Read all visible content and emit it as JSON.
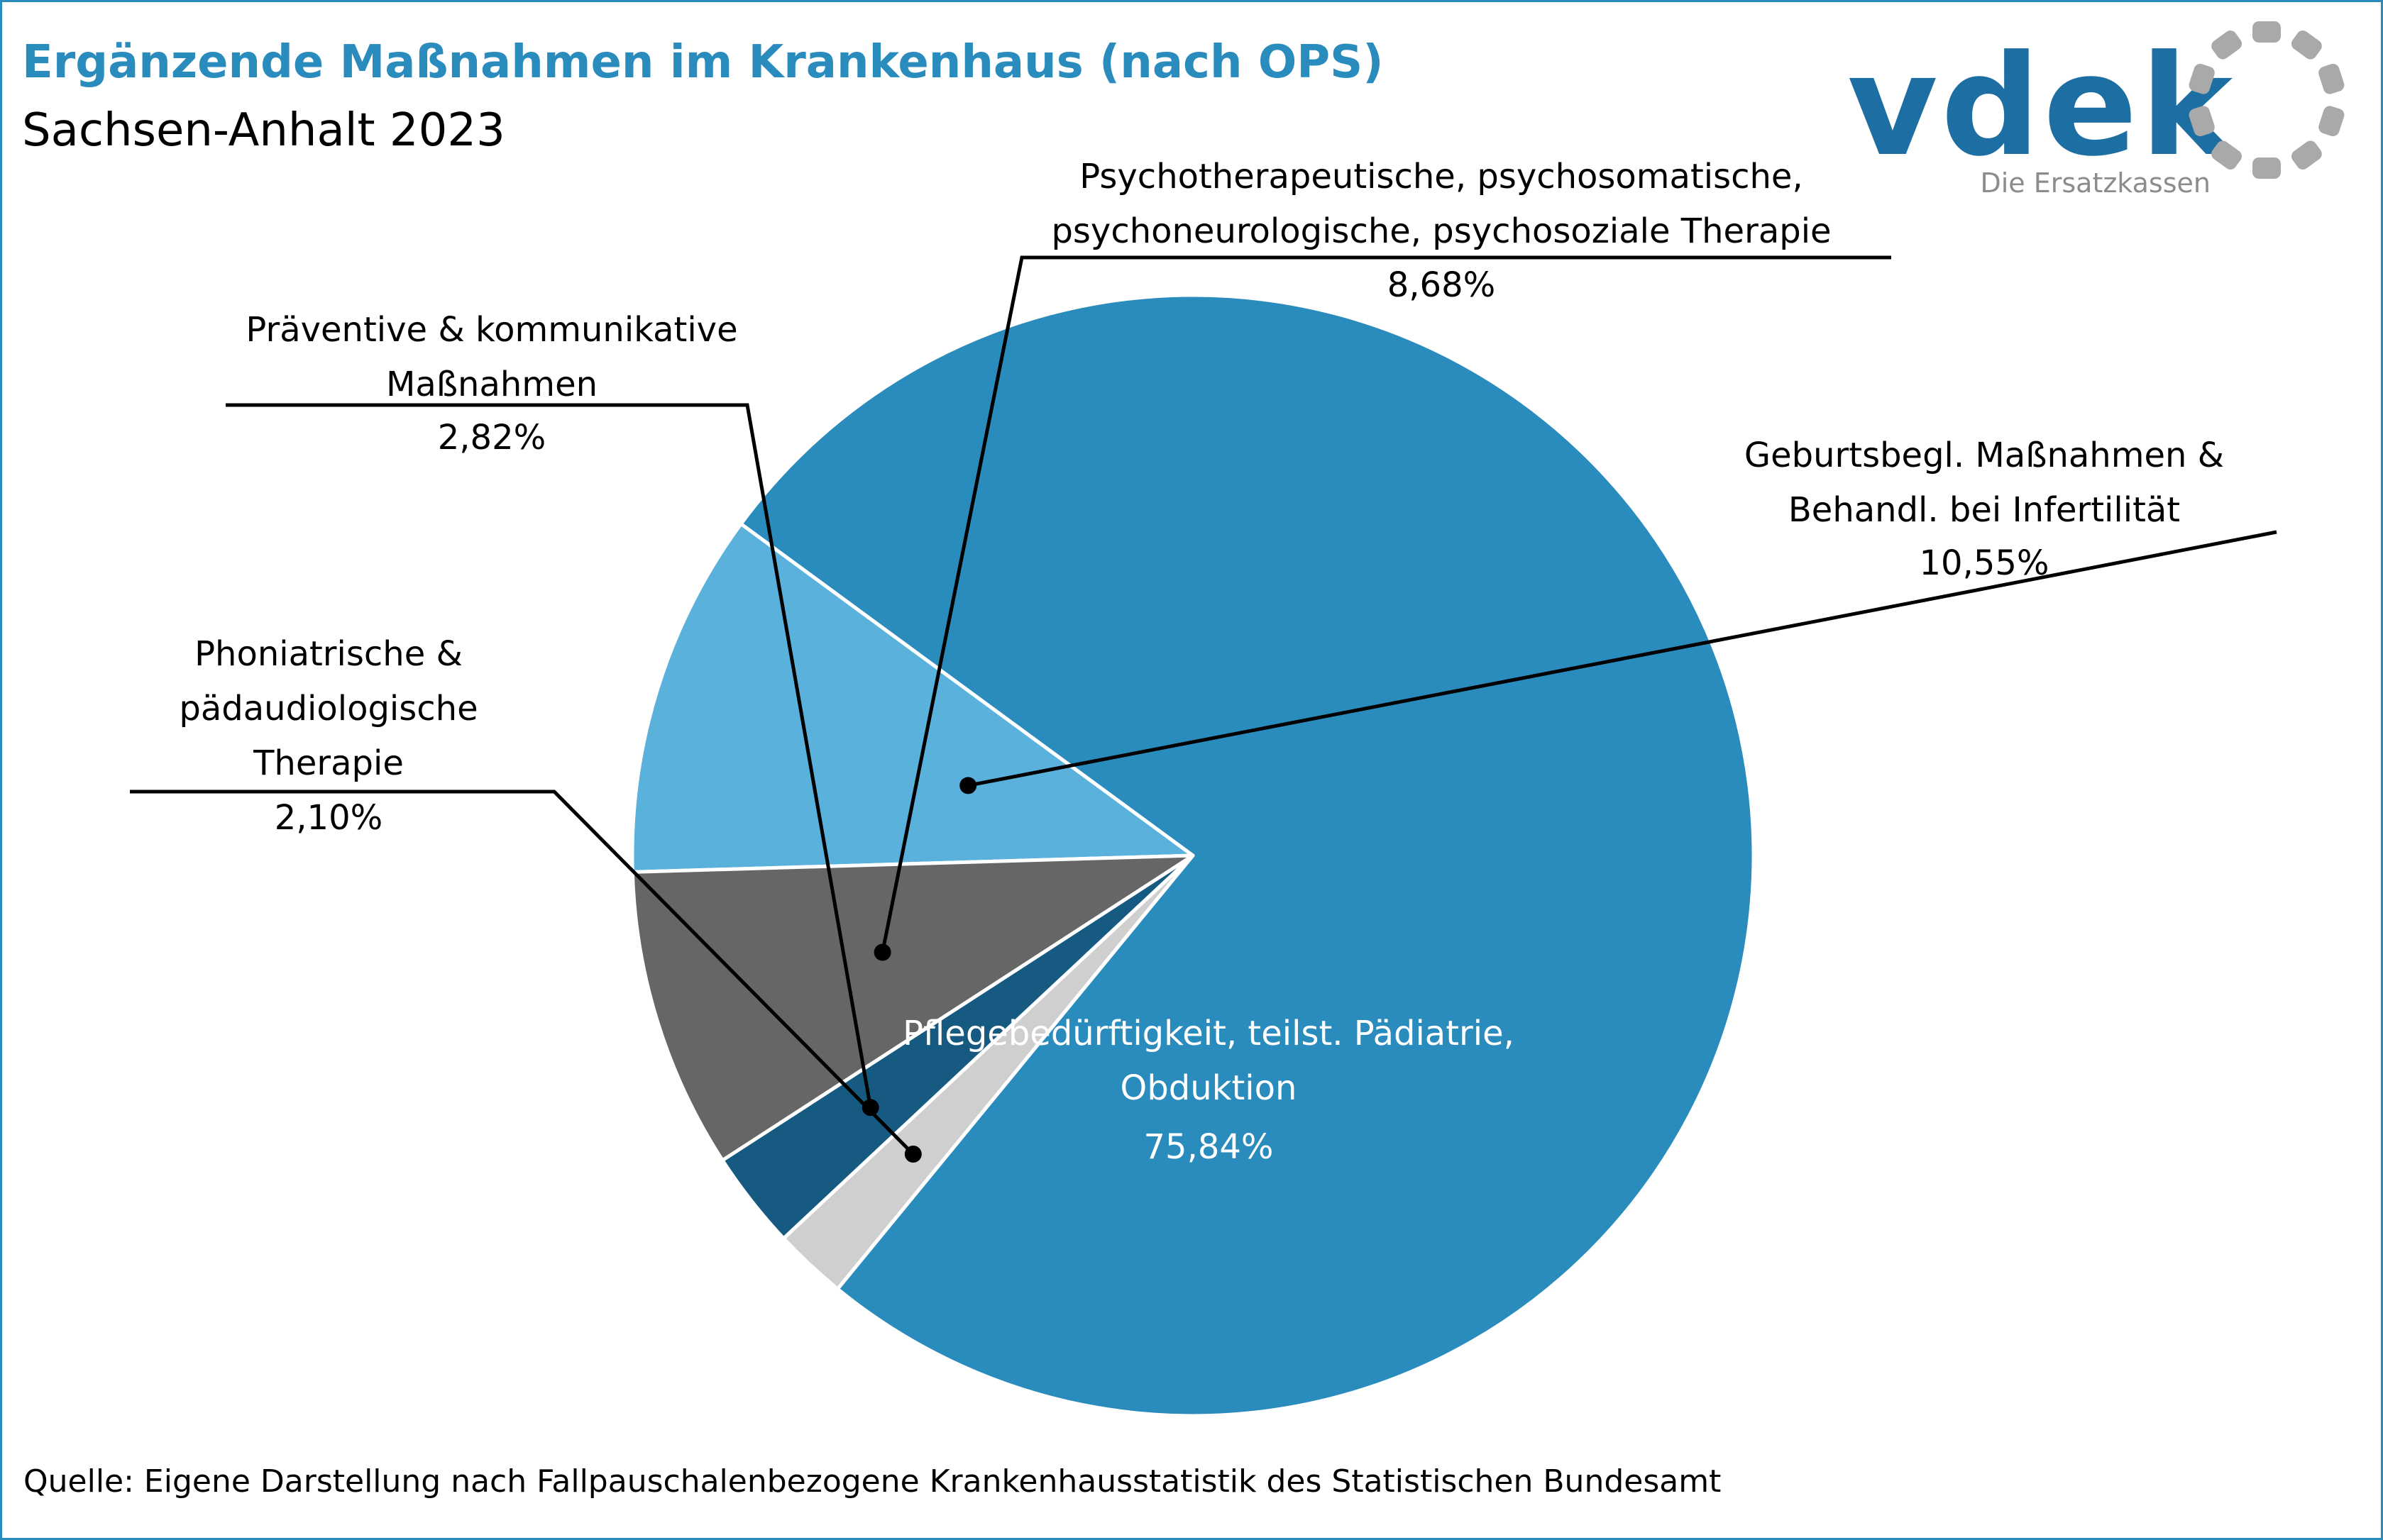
{
  "title": "Ergänzende Maßnahmen im Krankenhaus (nach OPS)",
  "subtitle": "Sachsen-Anhalt 2023",
  "source": "Quelle: Eigene Darstellung nach Fallpauschalenbezogene Krankenhausstatistik des Statistischen Bundesamt",
  "logo": {
    "wordmark": "vdek",
    "tagline": "Die Ersatzkassen",
    "color": "#1d6fa3",
    "ring_color": "#a9a9a9"
  },
  "colors": {
    "title": "#2a8bbd",
    "frame": "#2a8bbd",
    "text": "#000000"
  },
  "chart_data": {
    "type": "pie",
    "unit": "%",
    "slices": [
      {
        "label_lines": [
          "Geburtsbegl. Maßnahmen &",
          "Behandl. bei Infertilität"
        ],
        "value": 10.55,
        "value_text": "10,55%",
        "color": "#5ab1dc"
      },
      {
        "label_lines": [
          "Pflegebedürftigkeit, teilst. Pädiatrie,",
          "Obduktion"
        ],
        "value": 75.84,
        "value_text": "75,84%",
        "color": "#2a8bbd"
      },
      {
        "label_lines": [
          "Phoniatrische &",
          "pädaudiologische",
          "Therapie"
        ],
        "value": 2.1,
        "value_text": "2,10%",
        "color": "#cfcfcf"
      },
      {
        "label_lines": [
          "Präventive & kommunikative",
          "Maßnahmen"
        ],
        "value": 2.82,
        "value_text": "2,82%",
        "color": "#165a82"
      },
      {
        "label_lines": [
          "Psychotherapeutische, psychosomatische,",
          "psychoneurologische, psychosoziale  Therapie"
        ],
        "value": 8.68,
        "value_text": "8,68%",
        "color": "#666666"
      }
    ]
  }
}
